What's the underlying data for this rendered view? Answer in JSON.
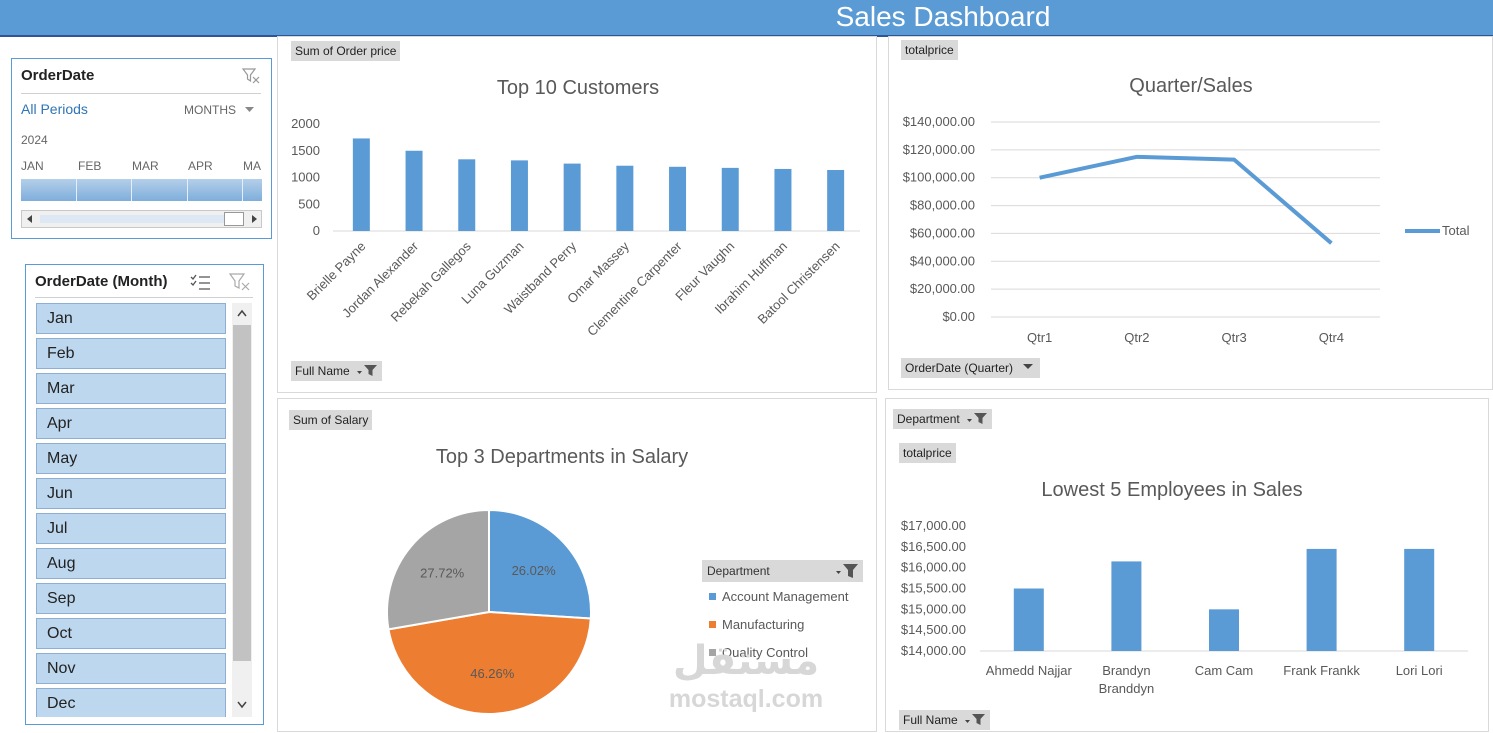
{
  "header": {
    "title": "Sales Dashboard"
  },
  "timeline": {
    "title": "OrderDate",
    "all_periods": "All Periods",
    "level": "MONTHS",
    "year": "2024",
    "months": [
      "JAN",
      "FEB",
      "MAR",
      "APR",
      "MA"
    ]
  },
  "slicer": {
    "title": "OrderDate (Month)",
    "items": [
      "Jan",
      "Feb",
      "Mar",
      "Apr",
      "May",
      "Jun",
      "Jul",
      "Aug",
      "Sep",
      "Oct",
      "Nov",
      "Dec"
    ]
  },
  "customers_panel": {
    "field_value": "Sum of Order price",
    "field_axis": "Full Name"
  },
  "quarter_panel": {
    "field_value": "totalprice",
    "field_axis": "OrderDate (Quarter)",
    "legend": "Total"
  },
  "salary_panel": {
    "field_value": "Sum of Salary",
    "legend_field": "Department"
  },
  "employees_panel": {
    "field_filter": "Department",
    "field_value": "totalprice",
    "field_axis": "Full Name"
  },
  "watermark": {
    "line1": "مستقل",
    "line2": "mostaql.com"
  },
  "colors": {
    "blue": "#5b9bd5",
    "orange": "#ed7d31",
    "gray": "#a5a5a5",
    "header": "#5b9bd5"
  },
  "chart_data": [
    {
      "type": "bar",
      "title": "Top 10 Customers",
      "categories": [
        "Brielle Payne",
        "Jordan Alexander",
        "Rebekah Gallegos",
        "Luna Guzman",
        "Waistband Perry",
        "Omar Massey",
        "Clementine Carpenter",
        "Fleur Vaughn",
        "Ibrahim Huffman",
        "Batool Christensen"
      ],
      "values": [
        1730,
        1500,
        1340,
        1320,
        1260,
        1220,
        1200,
        1180,
        1160,
        1140
      ],
      "yticks": [
        "0",
        "500",
        "1000",
        "1500",
        "2000"
      ],
      "ylim": [
        0,
        2000
      ]
    },
    {
      "type": "line",
      "title": "Quarter/Sales",
      "categories": [
        "Qtr1",
        "Qtr2",
        "Qtr3",
        "Qtr4"
      ],
      "series": [
        {
          "name": "Total",
          "values": [
            100000,
            115000,
            113000,
            53000
          ]
        }
      ],
      "yticks": [
        "$0.00",
        "$20,000.00",
        "$40,000.00",
        "$60,000.00",
        "$80,000.00",
        "$100,000.00",
        "$120,000.00",
        "$140,000.00"
      ],
      "ylim": [
        0,
        140000
      ],
      "legend": "right"
    },
    {
      "type": "pie",
      "title": "Top 3 Departments in Salary",
      "categories": [
        "Account Management",
        "Manufacturing",
        "Quality Control"
      ],
      "values": [
        26.02,
        46.26,
        27.72
      ],
      "labels": [
        "26.02%",
        "46.26%",
        "27.72%"
      ],
      "legend": "right"
    },
    {
      "type": "bar",
      "title": "Lowest 5 Employees in Sales",
      "categories": [
        "Ahmedd Najjar",
        "Brandyn Branddyn",
        "Cam Cam",
        "Frank Frankk",
        "Lori Lori"
      ],
      "values": [
        15500,
        16150,
        15000,
        16450,
        16450
      ],
      "yticks": [
        "$14,000.00",
        "$14,500.00",
        "$15,000.00",
        "$15,500.00",
        "$16,000.00",
        "$16,500.00",
        "$17,000.00"
      ],
      "ylim": [
        14000,
        17000
      ]
    }
  ]
}
